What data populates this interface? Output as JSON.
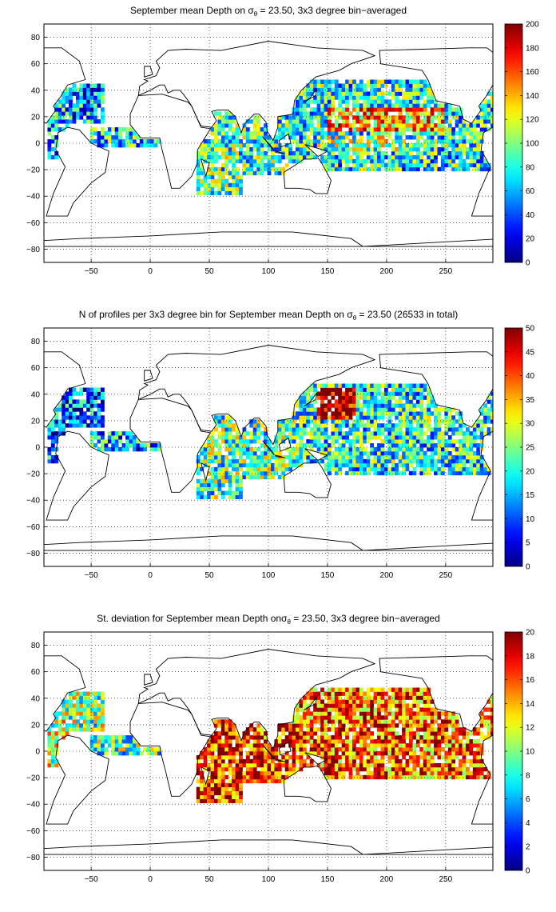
{
  "chart_data": [
    {
      "type": "heatmap",
      "title": "September mean Depth on σθ = 23.50, 3x3 degree bin−averaged",
      "title_parts": {
        "before": "September mean Depth on σ",
        "sub": "θ",
        "after": " = 23.50, 3x3 degree bin−averaged"
      },
      "xlim": [
        -90,
        290
      ],
      "ylim": [
        -90,
        90
      ],
      "x_ticks": [
        -50,
        0,
        50,
        100,
        150,
        200,
        250
      ],
      "y_ticks": [
        -80,
        -60,
        -40,
        -20,
        0,
        20,
        40,
        60,
        80
      ],
      "x_tick_labels": [
        "−50",
        "0",
        "50",
        "100",
        "150",
        "200",
        "250"
      ],
      "y_tick_labels": [
        "−80",
        "−60",
        "−40",
        "−20",
        "0",
        "20",
        "40",
        "60",
        "80"
      ],
      "grid": true,
      "bin_size_deg": 3,
      "colorbar": {
        "min": 0,
        "max": 200,
        "ticks": [
          0,
          20,
          40,
          60,
          80,
          100,
          120,
          140,
          160,
          180,
          200
        ],
        "tick_labels": [
          "0",
          "20",
          "40",
          "60",
          "80",
          "100",
          "120",
          "140",
          "160",
          "180",
          "200"
        ],
        "colormap": "jet"
      },
      "regions": [
        {
          "x": [
            -88,
            -70
          ],
          "y": [
            -12,
            36
          ],
          "level": 0.3
        },
        {
          "x": [
            -80,
            -40
          ],
          "y": [
            16,
            46
          ],
          "level": 0.28
        },
        {
          "x": [
            -52,
            10
          ],
          "y": [
            -4,
            12
          ],
          "level": 0.38
        },
        {
          "x": [
            38,
            78
          ],
          "y": [
            -40,
            26
          ],
          "level": 0.45
        },
        {
          "x": [
            78,
            125
          ],
          "y": [
            -24,
            22
          ],
          "level": 0.42
        },
        {
          "x": [
            116,
            290
          ],
          "y": [
            -20,
            48
          ],
          "level": 0.4
        },
        {
          "x": [
            150,
            250
          ],
          "y": [
            10,
            26
          ],
          "level": 0.7
        },
        {
          "x": [
            140,
            220
          ],
          "y": [
            -6,
            6
          ],
          "level": 0.5
        },
        {
          "x": [
            250,
            290
          ],
          "y": [
            10,
            45
          ],
          "level": 0.32
        }
      ]
    },
    {
      "type": "heatmap",
      "title": "N of profiles per 3x3 degree bin for September mean Depth on σθ = 23.50 (26533 in total)",
      "title_parts": {
        "before": "N of profiles per 3x3 degree bin for September mean Depth on σ",
        "sub": "θ",
        "after": " = 23.50 (26533 in total)"
      },
      "xlim": [
        -90,
        290
      ],
      "ylim": [
        -90,
        90
      ],
      "x_ticks": [
        -50,
        0,
        50,
        100,
        150,
        200,
        250
      ],
      "y_ticks": [
        -80,
        -60,
        -40,
        -20,
        0,
        20,
        40,
        60,
        80
      ],
      "x_tick_labels": [
        "−50",
        "0",
        "50",
        "100",
        "150",
        "200",
        "250"
      ],
      "y_tick_labels": [
        "−80",
        "−60",
        "−40",
        "−20",
        "0",
        "20",
        "40",
        "60",
        "80"
      ],
      "grid": true,
      "bin_size_deg": 3,
      "total_profiles": 26533,
      "colorbar": {
        "min": 0,
        "max": 50,
        "ticks": [
          0,
          5,
          10,
          15,
          20,
          25,
          30,
          35,
          40,
          45,
          50
        ],
        "tick_labels": [
          "0",
          "5",
          "10",
          "15",
          "20",
          "25",
          "30",
          "35",
          "40",
          "45",
          "50"
        ],
        "colormap": "jet"
      },
      "regions": [
        {
          "x": [
            -88,
            -70
          ],
          "y": [
            -12,
            36
          ],
          "level": 0.25
        },
        {
          "x": [
            -80,
            -40
          ],
          "y": [
            16,
            46
          ],
          "level": 0.22
        },
        {
          "x": [
            -52,
            10
          ],
          "y": [
            -4,
            12
          ],
          "level": 0.3
        },
        {
          "x": [
            38,
            78
          ],
          "y": [
            -40,
            26
          ],
          "level": 0.45
        },
        {
          "x": [
            78,
            125
          ],
          "y": [
            -24,
            22
          ],
          "level": 0.45
        },
        {
          "x": [
            116,
            290
          ],
          "y": [
            -20,
            48
          ],
          "level": 0.4
        },
        {
          "x": [
            140,
            175
          ],
          "y": [
            20,
            44
          ],
          "level": 0.95
        },
        {
          "x": [
            250,
            290
          ],
          "y": [
            10,
            45
          ],
          "level": 0.28
        }
      ]
    },
    {
      "type": "heatmap",
      "title": "St. deviation for September mean Depth onσθ = 23.50, 3x3 degree bin−averaged",
      "title_parts": {
        "before": "St. deviation for September mean Depth onσ",
        "sub": "θ",
        "after": " = 23.50, 3x3 degree bin−averaged"
      },
      "xlim": [
        -90,
        290
      ],
      "ylim": [
        -90,
        90
      ],
      "x_ticks": [
        -50,
        0,
        50,
        100,
        150,
        200,
        250
      ],
      "y_ticks": [
        -80,
        -60,
        -40,
        -20,
        0,
        20,
        40,
        60,
        80
      ],
      "x_tick_labels": [
        "−50",
        "0",
        "50",
        "100",
        "150",
        "200",
        "250"
      ],
      "y_tick_labels": [
        "−80",
        "−60",
        "−40",
        "−20",
        "0",
        "20",
        "40",
        "60",
        "80"
      ],
      "grid": true,
      "bin_size_deg": 3,
      "colorbar": {
        "min": 0,
        "max": 20,
        "ticks": [
          0,
          2,
          4,
          6,
          8,
          10,
          12,
          14,
          16,
          18,
          20
        ],
        "tick_labels": [
          "0",
          "2",
          "4",
          "6",
          "8",
          "10",
          "12",
          "14",
          "16",
          "18",
          "20"
        ],
        "colormap": "jet"
      },
      "regions": [
        {
          "x": [
            -88,
            -70
          ],
          "y": [
            -12,
            36
          ],
          "level": 0.55
        },
        {
          "x": [
            -80,
            -40
          ],
          "y": [
            16,
            46
          ],
          "level": 0.5
        },
        {
          "x": [
            -52,
            10
          ],
          "y": [
            -4,
            12
          ],
          "level": 0.45
        },
        {
          "x": [
            38,
            78
          ],
          "y": [
            -40,
            26
          ],
          "level": 0.85
        },
        {
          "x": [
            78,
            125
          ],
          "y": [
            -24,
            22
          ],
          "level": 0.85
        },
        {
          "x": [
            116,
            290
          ],
          "y": [
            -20,
            48
          ],
          "level": 0.78
        },
        {
          "x": [
            250,
            290
          ],
          "y": [
            10,
            45
          ],
          "level": 0.5
        }
      ]
    }
  ],
  "land_outline": [
    [
      [
        -88,
        -55
      ],
      [
        -82,
        -38
      ],
      [
        -72,
        -18
      ],
      [
        -80,
        -5
      ],
      [
        -78,
        8
      ],
      [
        -70,
        12
      ],
      [
        -60,
        10
      ],
      [
        -50,
        0
      ],
      [
        -35,
        -6
      ],
      [
        -38,
        -22
      ],
      [
        -50,
        -30
      ],
      [
        -65,
        -45
      ],
      [
        -70,
        -55
      ],
      [
        -88,
        -55
      ]
    ],
    [
      [
        -88,
        15
      ],
      [
        -95,
        18
      ],
      [
        -98,
        28
      ],
      [
        -118,
        32
      ],
      [
        -125,
        48
      ],
      [
        -130,
        55
      ],
      [
        -165,
        60
      ],
      [
        -166,
        70
      ],
      [
        -90,
        72
      ],
      [
        -75,
        72
      ],
      [
        -60,
        62
      ],
      [
        -55,
        48
      ],
      [
        -70,
        44
      ],
      [
        -76,
        35
      ],
      [
        -82,
        28
      ],
      [
        -80,
        25
      ],
      [
        -88,
        15
      ]
    ],
    [
      [
        -10,
        36
      ],
      [
        -17,
        22
      ],
      [
        -17,
        14
      ],
      [
        -8,
        4
      ],
      [
        8,
        4
      ],
      [
        10,
        -5
      ],
      [
        13,
        -15
      ],
      [
        18,
        -34
      ],
      [
        25,
        -34
      ],
      [
        35,
        -25
      ],
      [
        40,
        -15
      ],
      [
        40,
        -5
      ],
      [
        51,
        11
      ],
      [
        43,
        12
      ],
      [
        35,
        28
      ],
      [
        32,
        31
      ],
      [
        10,
        37
      ],
      [
        -10,
        36
      ]
    ],
    [
      [
        -10,
        36
      ],
      [
        -9,
        43
      ],
      [
        -2,
        47
      ],
      [
        -5,
        48
      ],
      [
        5,
        51
      ],
      [
        8,
        57
      ],
      [
        5,
        62
      ],
      [
        15,
        70
      ],
      [
        30,
        71
      ],
      [
        60,
        70
      ],
      [
        100,
        77
      ],
      [
        140,
        72
      ],
      [
        180,
        70
      ],
      [
        190,
        66
      ],
      [
        170,
        60
      ],
      [
        160,
        55
      ],
      [
        140,
        50
      ],
      [
        128,
        40
      ],
      [
        122,
        32
      ],
      [
        121,
        22
      ],
      [
        108,
        20
      ],
      [
        108,
        12
      ],
      [
        104,
        2
      ],
      [
        99,
        9
      ],
      [
        98,
        16
      ],
      [
        92,
        22
      ],
      [
        88,
        22
      ],
      [
        80,
        15
      ],
      [
        77,
        8
      ],
      [
        72,
        20
      ],
      [
        66,
        25
      ],
      [
        57,
        25
      ],
      [
        52,
        24
      ],
      [
        56,
        17
      ],
      [
        52,
        12
      ],
      [
        43,
        13
      ],
      [
        40,
        18
      ],
      [
        35,
        28
      ],
      [
        33,
        31
      ],
      [
        28,
        37
      ],
      [
        25,
        40
      ],
      [
        20,
        40
      ],
      [
        15,
        38
      ],
      [
        12,
        44
      ],
      [
        8,
        44
      ],
      [
        0,
        40
      ],
      [
        -10,
        36
      ]
    ],
    [
      [
        113,
        -22
      ],
      [
        114,
        -34
      ],
      [
        125,
        -34
      ],
      [
        135,
        -35
      ],
      [
        140,
        -38
      ],
      [
        150,
        -38
      ],
      [
        153,
        -28
      ],
      [
        145,
        -15
      ],
      [
        142,
        -11
      ],
      [
        136,
        -12
      ],
      [
        130,
        -12
      ],
      [
        122,
        -17
      ],
      [
        113,
        -22
      ]
    ],
    [
      [
        -5,
        50
      ],
      [
        -5,
        58
      ],
      [
        0,
        58
      ],
      [
        2,
        52
      ],
      [
        -5,
        50
      ]
    ],
    [
      [
        95,
        5
      ],
      [
        105,
        -6
      ],
      [
        103,
        -3
      ],
      [
        95,
        5
      ]
    ],
    [
      [
        106,
        -6
      ],
      [
        114,
        -8
      ],
      [
        106,
        -7
      ],
      [
        106,
        -6
      ]
    ],
    [
      [
        109,
        2
      ],
      [
        117,
        7
      ],
      [
        119,
        0
      ],
      [
        110,
        -3
      ],
      [
        109,
        2
      ]
    ],
    [
      [
        131,
        -1
      ],
      [
        150,
        -6
      ],
      [
        142,
        -10
      ],
      [
        131,
        -1
      ]
    ],
    [
      [
        130,
        31
      ],
      [
        135,
        34
      ],
      [
        141,
        41
      ],
      [
        140,
        36
      ],
      [
        130,
        31
      ]
    ],
    [
      [
        43,
        -12
      ],
      [
        50,
        -15
      ],
      [
        47,
        -25
      ],
      [
        43,
        -12
      ]
    ],
    [
      [
        -180,
        -78
      ],
      [
        -60,
        -72
      ],
      [
        0,
        -70
      ],
      [
        60,
        -67
      ],
      [
        120,
        -67
      ],
      [
        170,
        -72
      ],
      [
        180,
        -78
      ],
      [
        -180,
        -78
      ]
    ]
  ]
}
